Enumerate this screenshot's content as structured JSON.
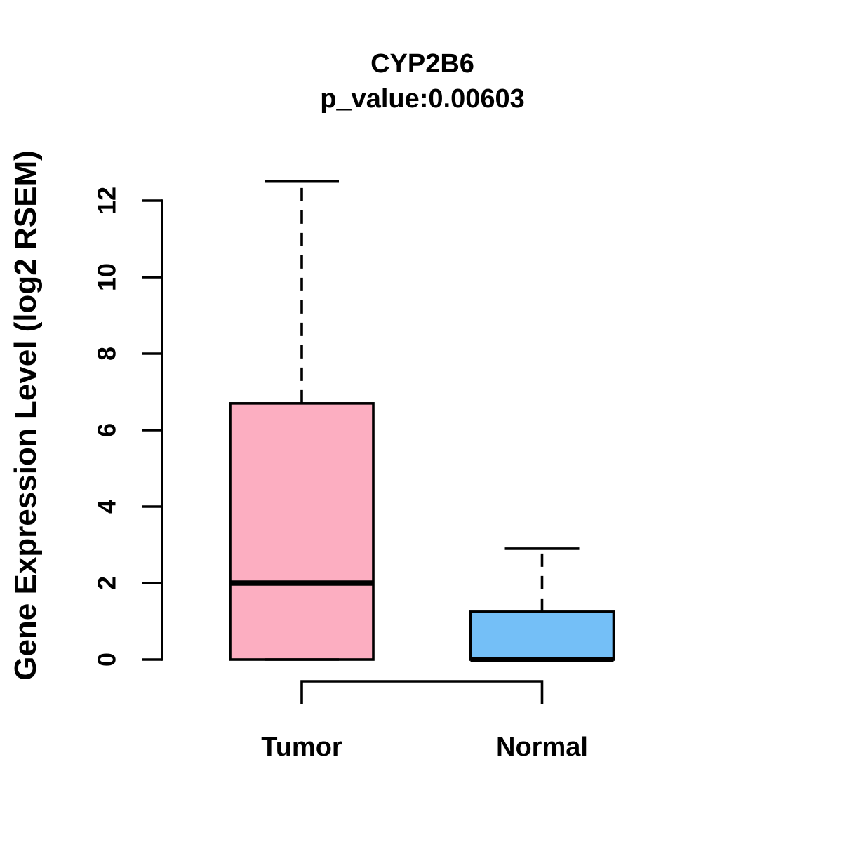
{
  "chart_data": {
    "type": "boxplot",
    "title": "CYP2B6",
    "subtitle": "p_value:0.00603",
    "ylabel": "Gene Expression Level (log2 RSEM)",
    "ylim": [
      0,
      12.6
    ],
    "yticks": [
      0,
      2,
      4,
      6,
      8,
      10,
      12
    ],
    "grid": false,
    "legend": "none",
    "categories": [
      "Tumor",
      "Normal"
    ],
    "series": [
      {
        "name": "Tumor",
        "fill": "#FCAEC1",
        "whisker_low": 0,
        "q1": 0,
        "median": 2.0,
        "q3": 6.7,
        "whisker_high": 12.5,
        "whisker_style": "dashed"
      },
      {
        "name": "Normal",
        "fill": "#74BFF7",
        "whisker_low": 0,
        "q1": 0,
        "median": 0,
        "q3": 1.25,
        "whisker_high": 2.9,
        "whisker_style": "dashed"
      }
    ],
    "comparison_bracket": {
      "groups": [
        "Tumor",
        "Normal"
      ]
    },
    "colors": {
      "stroke": "#000000",
      "background": "#FFFFFF",
      "tumor_fill": "#FCAEC1",
      "normal_fill": "#74BFF7"
    }
  }
}
